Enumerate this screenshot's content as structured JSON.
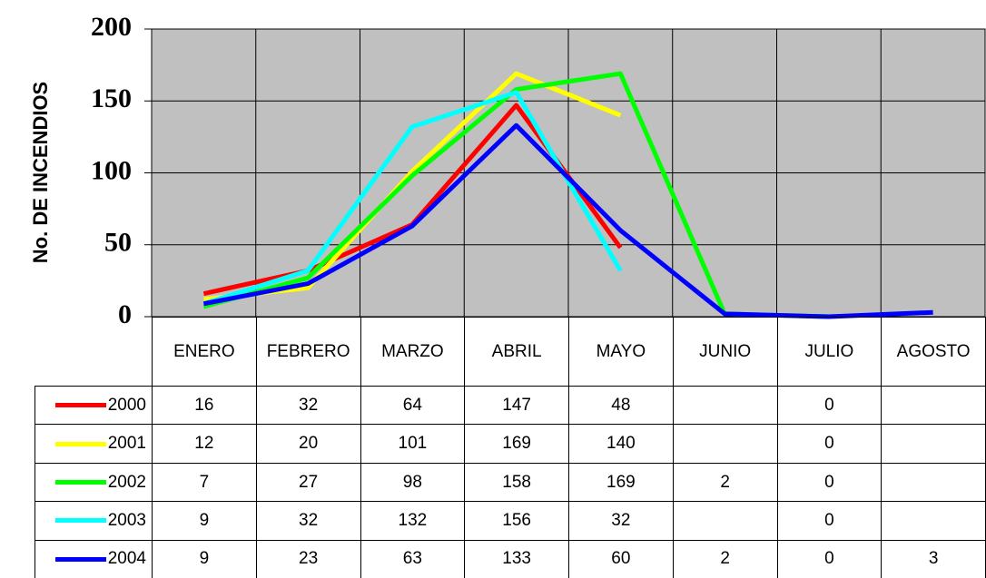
{
  "chart_data": {
    "type": "line",
    "ylabel": "No. DE INCENDIOS",
    "categories": [
      "ENERO",
      "FEBRERO",
      "MARZO",
      "ABRIL",
      "MAYO",
      "JUNIO",
      "JULIO",
      "AGOSTO"
    ],
    "series": [
      {
        "name": "2000",
        "color": "#ff0000",
        "values": [
          16,
          32,
          64,
          147,
          48,
          null,
          0,
          null
        ]
      },
      {
        "name": "2001",
        "color": "#ffff00",
        "values": [
          12,
          20,
          101,
          169,
          140,
          null,
          0,
          null
        ]
      },
      {
        "name": "2002",
        "color": "#00ff00",
        "values": [
          7,
          27,
          98,
          158,
          169,
          2,
          0,
          null
        ]
      },
      {
        "name": "2003",
        "color": "#00ffff",
        "values": [
          9,
          32,
          132,
          156,
          32,
          null,
          0,
          null
        ]
      },
      {
        "name": "2004",
        "color": "#0000ff",
        "values": [
          9,
          23,
          63,
          133,
          60,
          2,
          0,
          3
        ]
      }
    ],
    "ylim": [
      0,
      200
    ],
    "yticks": [
      0,
      50,
      100,
      150,
      200
    ],
    "grid": true,
    "plot_background": "#c0c0c0"
  }
}
